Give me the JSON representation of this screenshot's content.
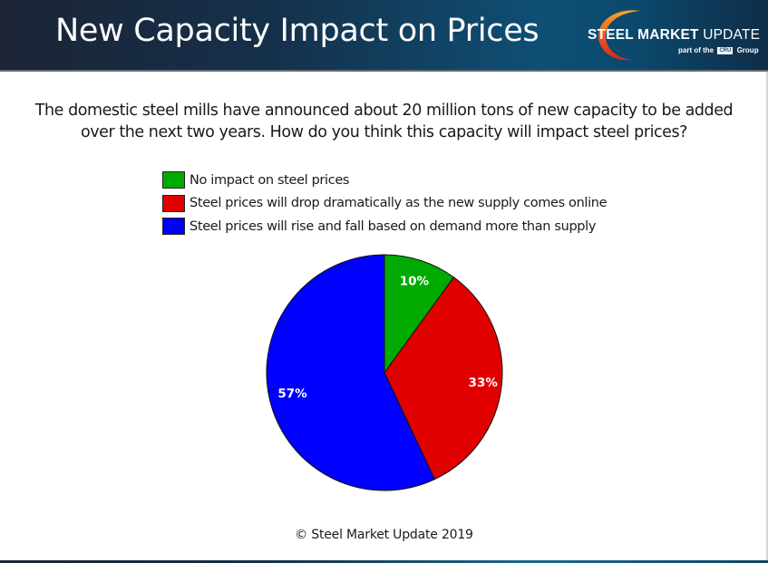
{
  "header": {
    "title": "New Capacity Impact on Prices",
    "logo": {
      "brand_bold": "STEEL MARKET",
      "brand_light": "UPDATE",
      "sub_prefix": "part of the",
      "sub_badge": "CRU",
      "sub_suffix": "Group"
    }
  },
  "question": "The domestic steel mills have announced about 20 million tons of new capacity to be added over the next two years. How do you think this capacity will impact steel prices?",
  "footer": "© Steel Market Update 2019",
  "chart_data": {
    "type": "pie",
    "title": "New Capacity Impact on Prices",
    "categories": [
      "No impact on steel prices",
      "Steel prices will drop dramatically as the new supply comes online",
      "Steel prices will rise and fall based on demand more than supply"
    ],
    "values": [
      10,
      33,
      57
    ],
    "labels": [
      "10%",
      "33%",
      "57%"
    ],
    "colors": [
      "#00aa00",
      "#e00000",
      "#0000ff"
    ],
    "start_angle": "12 o'clock",
    "direction": "clockwise",
    "legend_position": "top"
  }
}
